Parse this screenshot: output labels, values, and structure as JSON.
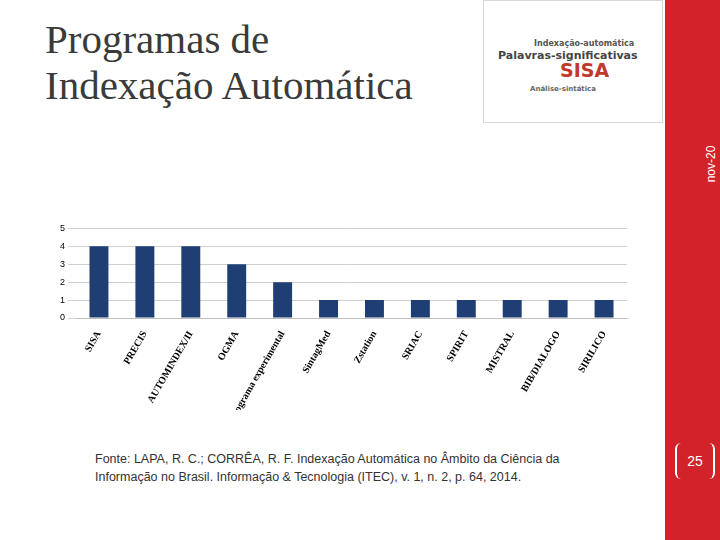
{
  "slide": {
    "title": "Programas de\nIndexação Automática",
    "date": "nov-20",
    "page_number": "25",
    "source": "Fonte: LAPA, R. C.; CORRÊA, R. F. Indexação Automática no Âmbito da Ciência da Informação no Brasil. Informação & Tecnologia (ITEC), v. 1, n. 2, p. 64, 2014.",
    "word_cloud": [
      "Palavras-significativas",
      "SISA",
      "Indexação-automática",
      "Análise-sintática"
    ]
  },
  "chart_data": {
    "type": "bar",
    "categories": [
      "SISA",
      "PRECIS",
      "AUTOMINDEX/II",
      "OGMA",
      "Programa experimental",
      "SintagMed",
      "Zstation",
      "SRIAC",
      "SPIRIT",
      "MISTRAL",
      "BIB/DIALOGO",
      "SIRILICO"
    ],
    "values": [
      4,
      4,
      4,
      3,
      2,
      1,
      1,
      1,
      1,
      1,
      1,
      1
    ],
    "color": "#1f3e73",
    "ylim": [
      0,
      5
    ],
    "yticks": [
      0,
      1,
      2,
      3,
      4,
      5
    ],
    "grid": true
  }
}
